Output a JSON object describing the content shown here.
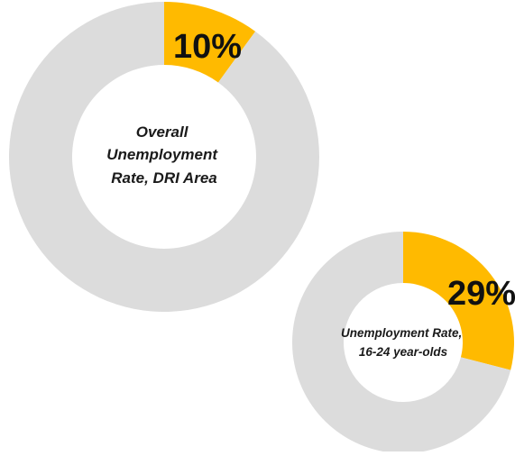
{
  "colors": {
    "highlight": "#ffba00",
    "remainder": "#dcdcdc",
    "background": "#ffffff",
    "text": "#111111"
  },
  "chart_data": [
    {
      "type": "pie",
      "variant": "donut",
      "label_lines": [
        "Overall",
        "Unemployment",
        "Rate, DRI Area"
      ],
      "value_label": "10%",
      "slices": [
        {
          "value": 10,
          "color": "#ffba00"
        },
        {
          "value": 90,
          "color": "#dcdcdc"
        }
      ]
    },
    {
      "type": "pie",
      "variant": "donut",
      "label_lines": [
        "Unemployment Rate,",
        "16-24 year-olds"
      ],
      "value_label": "29%",
      "slices": [
        {
          "value": 29,
          "color": "#ffba00"
        },
        {
          "value": 71,
          "color": "#dcdcdc"
        }
      ]
    }
  ]
}
